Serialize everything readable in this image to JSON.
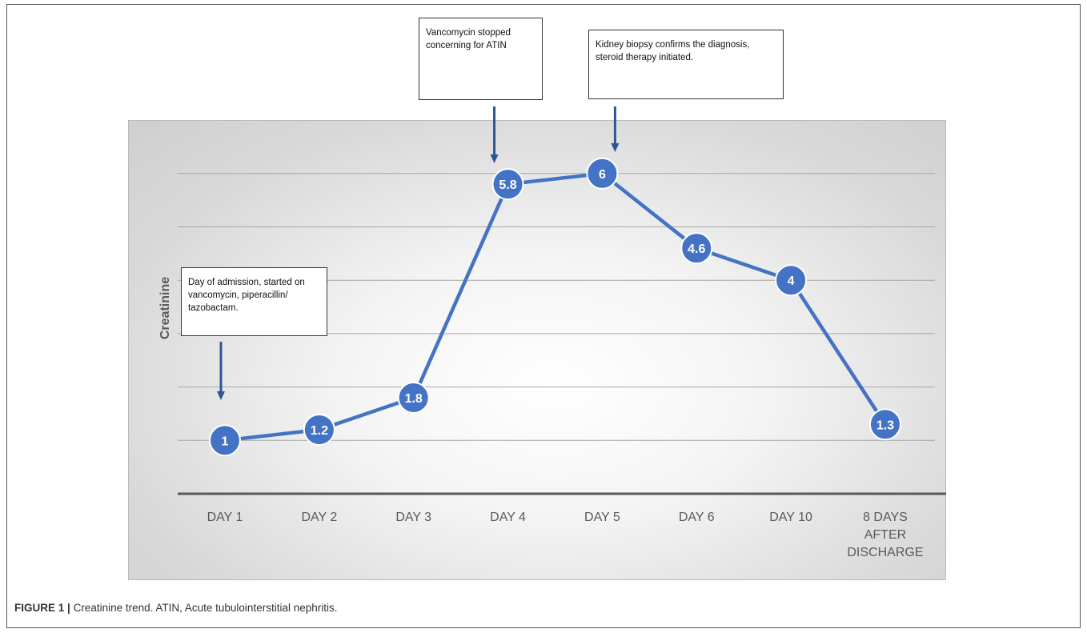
{
  "caption": {
    "label": "FIGURE 1 |",
    "text": "Creatinine trend. ATIN, Acute tubulointerstitial nephritis."
  },
  "annotations": [
    {
      "text": "Day of admission, started on vancomycin, piperacillin/ tazobactam.",
      "category_index": 0
    },
    {
      "text": "Vancomycin stopped concerning for ATIN",
      "category_index": 3
    },
    {
      "text": "Kidney biopsy confirms the diagnosis, steroid therapy initiated.",
      "category_index": 4
    }
  ],
  "chart_data": {
    "type": "line",
    "title": "",
    "xlabel": "",
    "ylabel": "Creatinine",
    "categories": [
      "DAY 1",
      "DAY 2",
      "DAY 3",
      "DAY 4",
      "DAY 5",
      "DAY 6",
      "DAY 10",
      "8 DAYS AFTER DISCHARGE"
    ],
    "series": [
      {
        "values": [
          1,
          1.2,
          1.8,
          5.8,
          6,
          4.6,
          4,
          1.3
        ],
        "data_labels": [
          "1",
          "1.2",
          "1.8",
          "5.8",
          "6",
          "4.6",
          "4",
          "1.3"
        ]
      }
    ],
    "ylim": [
      0,
      7
    ],
    "grid": true,
    "legend": "none",
    "colors": {
      "line": "#4472C4",
      "marker": "#4472C4",
      "arrow": "#2F5597",
      "grid": "#a6a6a6",
      "axis": "#595959"
    }
  }
}
